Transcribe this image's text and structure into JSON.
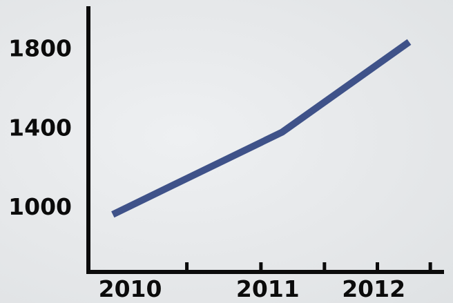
{
  "chart_data": {
    "type": "line",
    "title": "",
    "xlabel": "",
    "ylabel": "",
    "categories": [
      "2010",
      "2011",
      "2012"
    ],
    "x": [
      0.0,
      1.6,
      2.8
    ],
    "series": [
      {
        "values": [
          960,
          1375,
          1830
        ],
        "color": "#3f5289"
      }
    ],
    "x_ticks": [
      {
        "value": 0.7,
        "label": "2010"
      },
      {
        "value": 1.4,
        "label": ""
      },
      {
        "value": 2.0,
        "label": "2011"
      },
      {
        "value": 2.5,
        "label": ""
      },
      {
        "value": 3.0,
        "label": "2012"
      }
    ],
    "y_ticks": [
      1000,
      1400,
      1800
    ],
    "xlim": [
      -0.23,
      3.11
    ],
    "ylim": [
      670,
      2000
    ],
    "grid": false,
    "legend": "none"
  }
}
